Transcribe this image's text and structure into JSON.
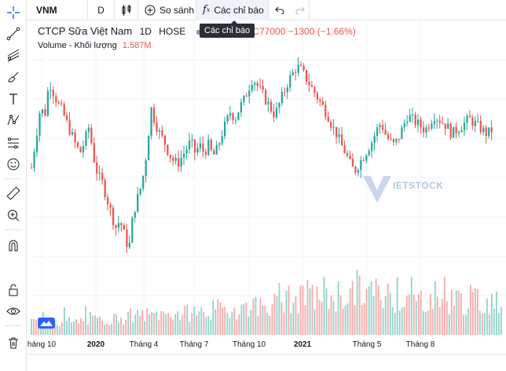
{
  "toolbar": {
    "symbol": "VNM",
    "interval": "D",
    "compare_label": "So sánh",
    "indicators_label": "Các chỉ báo"
  },
  "tooltip": {
    "text": "Các chỉ báo"
  },
  "legend": {
    "title": "CTCP Sữa Việt Nam",
    "interval": "1D",
    "exchange": "HOSE",
    "ohlc_text": "D L77000 C77000 −1300 (−1.66%)"
  },
  "volume_legend": {
    "label": "Volume - Khối lượng",
    "value": "1.587M",
    "settings_glyph": "/"
  },
  "watermark": {
    "text": "IETSTOCK"
  },
  "time_axis": {
    "labels": [
      "háng 10",
      "2020",
      "Tháng 4",
      "Tháng 7",
      "Tháng 10",
      "2021",
      "Tháng 5",
      "Tháng 8"
    ]
  },
  "colors": {
    "up": "#26a69a",
    "down": "#ef5350",
    "volume_up": "#92d2cc",
    "volume_down": "#f7a9a7",
    "grid": "#f0f3fa",
    "tooltip_bg": "#2a2e39",
    "accent": "#2962ff"
  },
  "icons": {
    "sidebar": [
      "crosshair-icon",
      "trend-line-icon",
      "pitchfork-icon",
      "brush-icon",
      "text-icon",
      "pattern-icon",
      "prediction-icon",
      "emoji-icon",
      "ruler-icon",
      "zoom-in-icon",
      "magnet-icon",
      "lock-icon",
      "eye-icon",
      "trash-icon"
    ],
    "toolbar": [
      "candles-icon",
      "plus-circle-icon",
      "fx-icon",
      "undo-icon",
      "redo-icon"
    ]
  },
  "chart_data": {
    "type": "candlestick",
    "x_range": [
      "2019-10",
      "2021-10"
    ],
    "close_path": [
      92,
      100,
      108,
      106,
      115,
      112,
      109,
      107,
      104,
      101,
      98,
      96,
      99,
      103,
      95,
      90,
      88,
      84,
      80,
      76,
      78,
      74,
      70,
      80,
      84,
      88,
      96,
      108,
      104,
      101,
      99,
      96,
      94,
      93,
      95,
      97,
      99,
      96,
      98,
      96,
      98,
      95,
      97,
      101,
      104,
      107,
      105,
      108,
      110,
      113,
      116,
      114,
      112,
      110,
      108,
      106,
      109,
      112,
      115,
      117,
      119,
      118,
      116,
      114,
      112,
      110,
      108,
      106,
      103,
      101,
      98,
      96,
      93,
      91,
      93,
      95,
      97,
      99,
      102,
      104,
      101,
      99,
      98,
      100,
      103,
      106,
      105,
      104,
      103,
      102,
      104,
      106,
      105,
      104,
      103,
      101,
      102,
      103,
      104,
      105,
      104,
      103,
      102,
      101,
      102
    ],
    "volume_path": [
      0.25,
      0.28,
      0.22,
      0.3,
      0.26,
      0.24,
      0.27,
      0.23,
      0.25,
      0.29,
      0.31,
      0.26,
      0.28,
      0.33,
      0.3,
      0.36,
      0.32,
      0.38,
      0.35,
      0.4,
      0.34,
      0.42,
      0.38,
      0.4,
      0.44,
      0.39,
      0.41,
      0.43,
      0.46,
      0.42,
      0.47,
      0.5,
      0.45,
      0.48,
      0.52,
      0.49,
      0.55,
      0.6,
      0.53,
      0.58,
      0.62,
      0.57,
      0.64,
      0.7,
      0.61,
      0.66,
      0.72,
      0.68,
      0.75,
      0.8,
      0.71,
      0.74,
      0.78,
      0.7,
      0.82,
      0.9,
      0.76,
      0.84,
      0.8,
      0.73,
      0.77,
      0.71,
      0.69,
      0.74,
      0.7,
      0.66,
      0.72,
      0.68,
      0.76,
      0.7,
      0.65,
      0.71,
      0.67,
      0.63,
      0.69,
      0.64,
      0.6,
      0.66,
      0.62,
      0.58
    ]
  }
}
